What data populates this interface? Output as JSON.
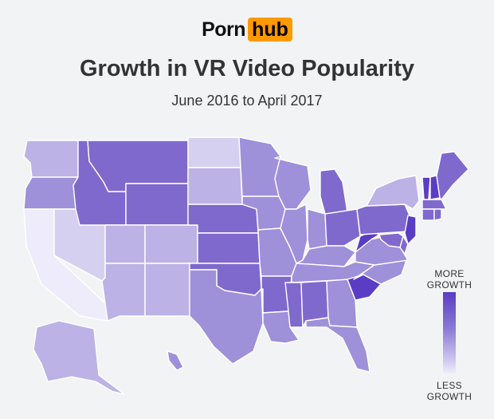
{
  "brand": {
    "part1": "Porn",
    "part2": "hub"
  },
  "title": "Growth in VR Video Popularity",
  "subtitle": "June 2016 to April 2017",
  "legend": {
    "top_line1": "MORE",
    "top_line2": "GROWTH",
    "bottom_line1": "LESS",
    "bottom_line2": "GROWTH"
  },
  "colors": {
    "background": "#f2f3f5",
    "brand_accent": "#ff9900",
    "scale_high": "#5a3dc4",
    "scale_low": "#efedfb",
    "border": "#ffffff"
  },
  "states": [
    {
      "id": "WA",
      "level": 2
    },
    {
      "id": "OR",
      "level": 3
    },
    {
      "id": "CA",
      "level": 0
    },
    {
      "id": "NV",
      "level": 1
    },
    {
      "id": "ID",
      "level": 4
    },
    {
      "id": "MT",
      "level": 4
    },
    {
      "id": "WY",
      "level": 4
    },
    {
      "id": "UT",
      "level": 2
    },
    {
      "id": "AZ",
      "level": 2
    },
    {
      "id": "CO",
      "level": 2
    },
    {
      "id": "NM",
      "level": 2
    },
    {
      "id": "ND",
      "level": 1
    },
    {
      "id": "SD",
      "level": 2
    },
    {
      "id": "NE",
      "level": 4
    },
    {
      "id": "KS",
      "level": 4
    },
    {
      "id": "OK",
      "level": 4
    },
    {
      "id": "TX",
      "level": 3
    },
    {
      "id": "MN",
      "level": 3
    },
    {
      "id": "IA",
      "level": 3
    },
    {
      "id": "MO",
      "level": 3
    },
    {
      "id": "AR",
      "level": 4
    },
    {
      "id": "LA",
      "level": 3
    },
    {
      "id": "WI",
      "level": 3
    },
    {
      "id": "IL",
      "level": 3
    },
    {
      "id": "MI",
      "level": 4
    },
    {
      "id": "IN",
      "level": 3
    },
    {
      "id": "OH",
      "level": 4
    },
    {
      "id": "KY",
      "level": 3
    },
    {
      "id": "TN",
      "level": 3
    },
    {
      "id": "MS",
      "level": 4
    },
    {
      "id": "AL",
      "level": 4
    },
    {
      "id": "GA",
      "level": 3
    },
    {
      "id": "FL",
      "level": 3
    },
    {
      "id": "SC",
      "level": 5
    },
    {
      "id": "NC",
      "level": 3
    },
    {
      "id": "VA",
      "level": 3
    },
    {
      "id": "WV",
      "level": 5
    },
    {
      "id": "PA",
      "level": 4
    },
    {
      "id": "NY",
      "level": 2
    },
    {
      "id": "VT",
      "level": 5
    },
    {
      "id": "NH",
      "level": 5
    },
    {
      "id": "ME",
      "level": 4
    },
    {
      "id": "MA",
      "level": 4
    },
    {
      "id": "CT",
      "level": 4
    },
    {
      "id": "RI",
      "level": 4
    },
    {
      "id": "NJ",
      "level": 5
    },
    {
      "id": "DE",
      "level": 4
    },
    {
      "id": "MD",
      "level": 4
    },
    {
      "id": "AK",
      "level": 2
    },
    {
      "id": "HI",
      "level": 3
    }
  ]
}
